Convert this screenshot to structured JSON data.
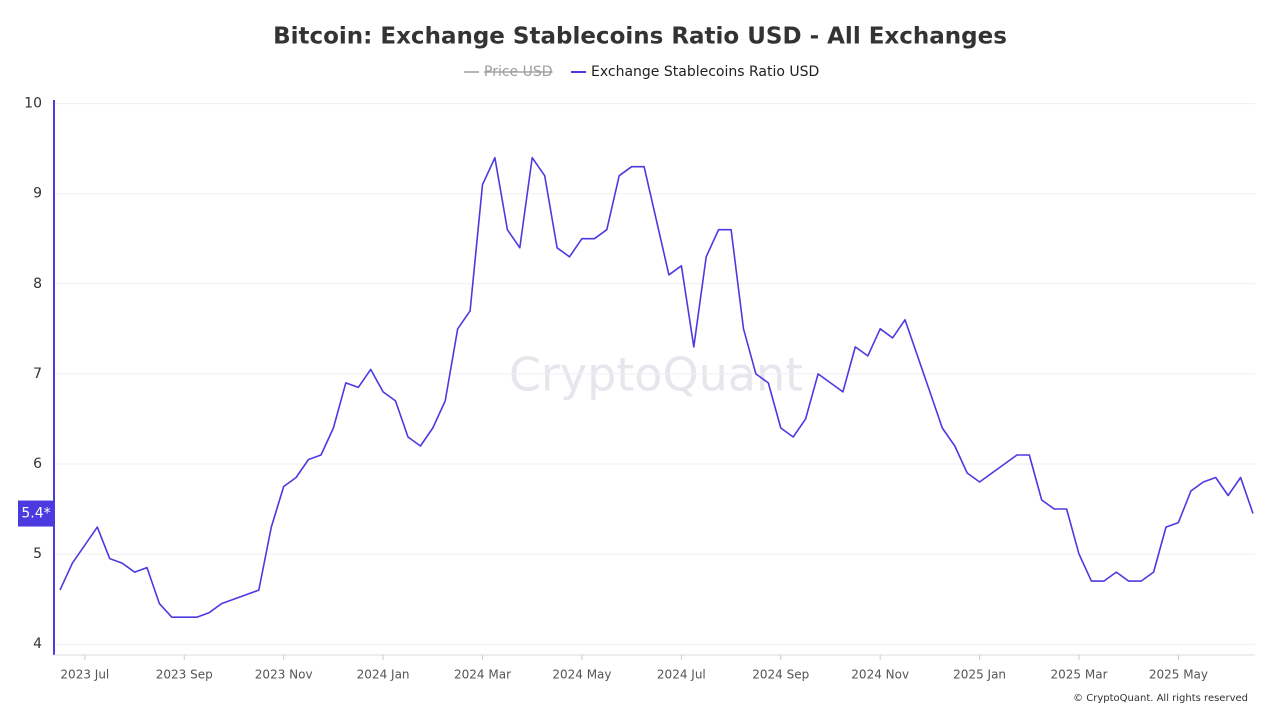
{
  "chart_data": {
    "type": "line",
    "title": "Bitcoin: Exchange Stablecoins Ratio USD - All Exchanges",
    "hidden_series": [
      {
        "name": "Price USD",
        "color": "#9e9e9e"
      }
    ],
    "x": [
      null,
      null,
      "2023 Jul",
      null,
      null,
      null,
      null,
      null,
      null,
      null,
      "2023 Sep",
      null,
      null,
      null,
      null,
      null,
      null,
      null,
      "2023 Nov",
      null,
      null,
      null,
      null,
      null,
      null,
      null,
      "2024 Jan",
      null,
      null,
      null,
      null,
      null,
      null,
      null,
      "2024 Mar",
      null,
      null,
      null,
      null,
      null,
      null,
      null,
      "2024 May",
      null,
      null,
      null,
      null,
      null,
      null,
      null,
      "2024 Jul",
      null,
      null,
      null,
      null,
      null,
      null,
      null,
      "2024 Sep",
      null,
      null,
      null,
      null,
      null,
      null,
      null,
      "2024 Nov",
      null,
      null,
      null,
      null,
      null,
      null,
      null,
      "2025 Jan",
      null,
      null,
      null,
      null,
      null,
      null,
      null,
      "2025 Mar",
      null,
      null,
      null,
      null,
      null,
      null,
      null,
      "2025 May",
      null,
      null,
      null,
      null,
      null,
      null
    ],
    "series": [
      {
        "name": "Exchange Stablecoins Ratio USD",
        "color": "#4b3ae0",
        "values": [
          4.6,
          4.9,
          5.1,
          5.3,
          4.95,
          4.9,
          4.8,
          4.85,
          4.45,
          4.3,
          4.3,
          4.3,
          4.35,
          4.45,
          4.5,
          4.55,
          4.6,
          5.3,
          5.75,
          5.85,
          6.05,
          6.1,
          6.4,
          6.9,
          6.85,
          7.05,
          6.8,
          6.7,
          6.3,
          6.2,
          6.4,
          6.7,
          7.5,
          7.7,
          9.1,
          9.4,
          8.6,
          8.4,
          9.4,
          9.2,
          8.4,
          8.3,
          8.5,
          8.5,
          8.6,
          9.2,
          9.3,
          9.3,
          8.7,
          8.1,
          8.2,
          7.3,
          8.3,
          8.6,
          8.6,
          7.5,
          7.0,
          6.9,
          6.4,
          6.3,
          6.5,
          7.0,
          6.9,
          6.8,
          7.3,
          7.2,
          7.5,
          7.4,
          7.6,
          7.2,
          6.8,
          6.4,
          6.2,
          5.9,
          5.8,
          5.9,
          6.0,
          6.1,
          6.1,
          5.6,
          5.5,
          5.5,
          5.0,
          4.7,
          4.7,
          4.8,
          4.7,
          4.7,
          4.8,
          5.3,
          5.35,
          5.7,
          5.8,
          5.85,
          5.65,
          5.85,
          5.45
        ]
      }
    ],
    "last_label": "5.4*",
    "ylim": [
      3.88,
      10.04
    ],
    "yticks": [
      4,
      5,
      6,
      7,
      8,
      9,
      10
    ],
    "grid": true,
    "watermark": "CryptoQuant",
    "footer": "© CryptoQuant. All rights reserved"
  }
}
